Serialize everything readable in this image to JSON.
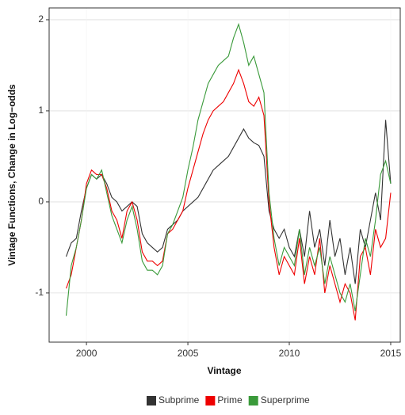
{
  "chart_data": {
    "type": "line",
    "x_label": "Vintage",
    "y_label": "Vintage Functions, Change in Log−odds",
    "x": [
      1999,
      1999.25,
      1999.5,
      1999.75,
      2000,
      2000.25,
      2000.5,
      2000.75,
      2001,
      2001.25,
      2001.5,
      2001.75,
      2002,
      2002.25,
      2002.5,
      2002.75,
      2003,
      2003.25,
      2003.5,
      2003.75,
      2004,
      2004.25,
      2004.5,
      2004.75,
      2005,
      2005.25,
      2005.5,
      2005.75,
      2006,
      2006.25,
      2006.5,
      2006.75,
      2007,
      2007.25,
      2007.5,
      2007.75,
      2008,
      2008.25,
      2008.5,
      2008.75,
      2009,
      2009.25,
      2009.5,
      2009.75,
      2010,
      2010.25,
      2010.5,
      2010.75,
      2011,
      2011.25,
      2011.5,
      2011.75,
      2012,
      2012.25,
      2012.5,
      2012.75,
      2013,
      2013.25,
      2013.5,
      2013.75,
      2014,
      2014.25,
      2014.5,
      2014.75,
      2015
    ],
    "series": [
      {
        "name": "Subprime",
        "color": "#333333",
        "values": [
          -0.6,
          -0.45,
          -0.4,
          -0.1,
          0.15,
          0.3,
          0.25,
          0.3,
          0.2,
          0.05,
          0.0,
          -0.1,
          -0.05,
          0.0,
          -0.05,
          -0.35,
          -0.45,
          -0.5,
          -0.55,
          -0.5,
          -0.3,
          -0.25,
          -0.2,
          -0.1,
          -0.05,
          0.0,
          0.05,
          0.15,
          0.25,
          0.35,
          0.4,
          0.45,
          0.5,
          0.6,
          0.7,
          0.8,
          0.7,
          0.65,
          0.62,
          0.5,
          -0.1,
          -0.3,
          -0.4,
          -0.3,
          -0.5,
          -0.6,
          -0.3,
          -0.6,
          -0.1,
          -0.5,
          -0.3,
          -0.7,
          -0.2,
          -0.6,
          -0.4,
          -0.8,
          -0.5,
          -0.9,
          -0.3,
          -0.5,
          -0.2,
          0.1,
          -0.2,
          0.9,
          0.2
        ]
      },
      {
        "name": "Prime",
        "color": "#ee0000",
        "values": [
          -0.95,
          -0.8,
          -0.5,
          -0.2,
          0.2,
          0.35,
          0.3,
          0.3,
          0.15,
          -0.1,
          -0.2,
          -0.4,
          -0.1,
          0.0,
          -0.2,
          -0.55,
          -0.65,
          -0.65,
          -0.7,
          -0.65,
          -0.35,
          -0.3,
          -0.2,
          -0.1,
          0.15,
          0.35,
          0.55,
          0.75,
          0.9,
          1.0,
          1.05,
          1.1,
          1.2,
          1.3,
          1.45,
          1.3,
          1.1,
          1.05,
          1.15,
          0.95,
          0.0,
          -0.5,
          -0.8,
          -0.6,
          -0.7,
          -0.8,
          -0.4,
          -0.9,
          -0.6,
          -0.8,
          -0.4,
          -1.0,
          -0.7,
          -0.9,
          -1.1,
          -0.9,
          -1.0,
          -1.3,
          -0.6,
          -0.5,
          -0.8,
          -0.3,
          -0.5,
          -0.4,
          0.1
        ]
      },
      {
        "name": "Superprime",
        "color": "#3a9a3a",
        "values": [
          -1.25,
          -0.7,
          -0.5,
          -0.2,
          0.15,
          0.3,
          0.25,
          0.35,
          0.1,
          -0.15,
          -0.3,
          -0.45,
          -0.2,
          -0.05,
          -0.3,
          -0.65,
          -0.75,
          -0.75,
          -0.8,
          -0.7,
          -0.35,
          -0.25,
          -0.1,
          0.05,
          0.35,
          0.6,
          0.9,
          1.1,
          1.3,
          1.4,
          1.5,
          1.55,
          1.6,
          1.8,
          1.95,
          1.75,
          1.5,
          1.6,
          1.4,
          1.2,
          0.1,
          -0.4,
          -0.7,
          -0.5,
          -0.6,
          -0.7,
          -0.3,
          -0.8,
          -0.5,
          -0.7,
          -0.5,
          -0.9,
          -0.6,
          -0.8,
          -1.0,
          -1.1,
          -0.9,
          -1.2,
          -0.8,
          -0.4,
          -0.6,
          -0.2,
          0.3,
          0.45,
          0.2
        ]
      }
    ],
    "xlim": [
      1998.16,
      2015.47
    ],
    "xticks": [
      2000,
      2005,
      2010,
      2015
    ],
    "ylim": [
      -1.54,
      2.13
    ],
    "yticks": [
      -1,
      0,
      1,
      2
    ],
    "grid": true,
    "legend": "bottom"
  }
}
